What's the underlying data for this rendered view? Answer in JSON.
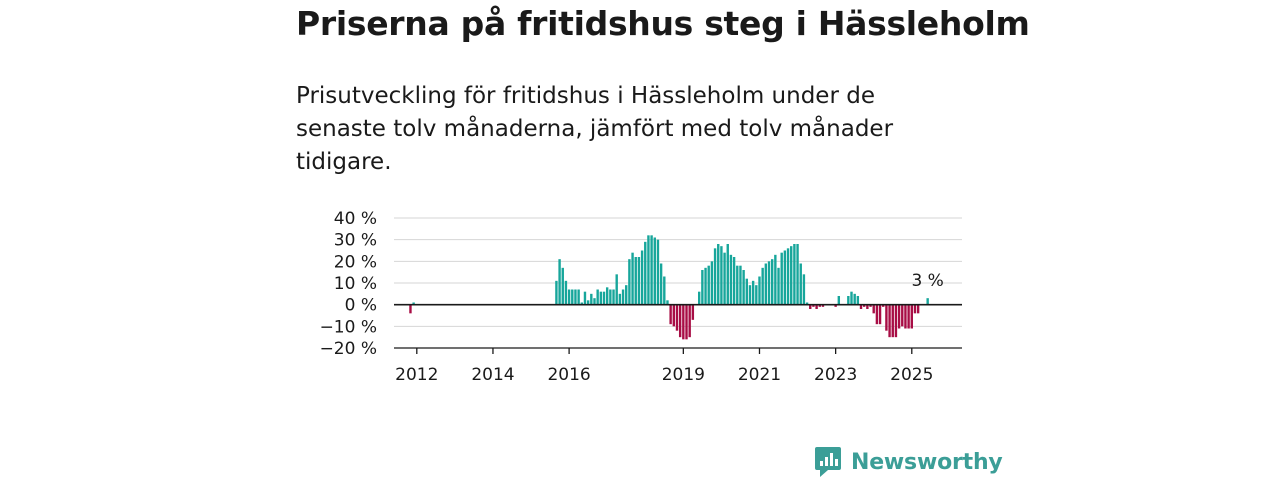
{
  "title": "Priserna på fritidshus steg i Hässleholm",
  "subtitle": "Prisutveckling för fritidshus i Hässleholm under de senaste tolv månaderna, jämfört med tolv månader tidigare.",
  "brand": {
    "name": "Newsworthy",
    "icon": "newsworthy-logo-icon",
    "color": "#3b9e97"
  },
  "colors": {
    "positive": "#17a69b",
    "negative": "#a80d45",
    "grid": "#d6d6d6",
    "axis": "#1a1a1a"
  },
  "chart_data": {
    "type": "bar",
    "x_unit": "month",
    "x_start": "2011-01",
    "x_ticks": [
      "2012",
      "2014",
      "2016",
      "2019",
      "2021",
      "2023",
      "2025"
    ],
    "y_ticks": [
      "40 %",
      "30 %",
      "20 %",
      "10 %",
      "0 %",
      "−10 %",
      "−20 %"
    ],
    "ylim": [
      -20,
      40
    ],
    "grid": true,
    "last_value_label": "3 %",
    "points": [
      {
        "x": "2011-10",
        "y": -4
      },
      {
        "x": "2011-11",
        "y": 1
      },
      {
        "x": "2015-08",
        "y": 11
      },
      {
        "x": "2015-09",
        "y": 21
      },
      {
        "x": "2015-10",
        "y": 17
      },
      {
        "x": "2015-11",
        "y": 11
      },
      {
        "x": "2015-12",
        "y": 7
      },
      {
        "x": "2016-01",
        "y": 7
      },
      {
        "x": "2016-02",
        "y": 7
      },
      {
        "x": "2016-03",
        "y": 7
      },
      {
        "x": "2016-04",
        "y": 1
      },
      {
        "x": "2016-05",
        "y": 6
      },
      {
        "x": "2016-06",
        "y": 2
      },
      {
        "x": "2016-07",
        "y": 5
      },
      {
        "x": "2016-08",
        "y": 3
      },
      {
        "x": "2016-09",
        "y": 7
      },
      {
        "x": "2016-10",
        "y": 6
      },
      {
        "x": "2016-11",
        "y": 6
      },
      {
        "x": "2016-12",
        "y": 8
      },
      {
        "x": "2017-01",
        "y": 7
      },
      {
        "x": "2017-02",
        "y": 7
      },
      {
        "x": "2017-03",
        "y": 14
      },
      {
        "x": "2017-04",
        "y": 5
      },
      {
        "x": "2017-05",
        "y": 7
      },
      {
        "x": "2017-06",
        "y": 9
      },
      {
        "x": "2017-07",
        "y": 21
      },
      {
        "x": "2017-08",
        "y": 24
      },
      {
        "x": "2017-09",
        "y": 22
      },
      {
        "x": "2017-10",
        "y": 22
      },
      {
        "x": "2017-11",
        "y": 25
      },
      {
        "x": "2017-12",
        "y": 29
      },
      {
        "x": "2018-01",
        "y": 32
      },
      {
        "x": "2018-02",
        "y": 32
      },
      {
        "x": "2018-03",
        "y": 31
      },
      {
        "x": "2018-04",
        "y": 30
      },
      {
        "x": "2018-05",
        "y": 19
      },
      {
        "x": "2018-06",
        "y": 13
      },
      {
        "x": "2018-07",
        "y": 2
      },
      {
        "x": "2018-08",
        "y": -9
      },
      {
        "x": "2018-09",
        "y": -10
      },
      {
        "x": "2018-10",
        "y": -12
      },
      {
        "x": "2018-11",
        "y": -15
      },
      {
        "x": "2018-12",
        "y": -16
      },
      {
        "x": "2019-01",
        "y": -16
      },
      {
        "x": "2019-02",
        "y": -15
      },
      {
        "x": "2019-03",
        "y": -7
      },
      {
        "x": "2019-04",
        "y": 0
      },
      {
        "x": "2019-05",
        "y": 6
      },
      {
        "x": "2019-06",
        "y": 16
      },
      {
        "x": "2019-07",
        "y": 17
      },
      {
        "x": "2019-08",
        "y": 18
      },
      {
        "x": "2019-09",
        "y": 20
      },
      {
        "x": "2019-10",
        "y": 26
      },
      {
        "x": "2019-11",
        "y": 28
      },
      {
        "x": "2019-12",
        "y": 27
      },
      {
        "x": "2020-01",
        "y": 24
      },
      {
        "x": "2020-02",
        "y": 28
      },
      {
        "x": "2020-03",
        "y": 23
      },
      {
        "x": "2020-04",
        "y": 22
      },
      {
        "x": "2020-05",
        "y": 18
      },
      {
        "x": "2020-06",
        "y": 18
      },
      {
        "x": "2020-07",
        "y": 16
      },
      {
        "x": "2020-08",
        "y": 12
      },
      {
        "x": "2020-09",
        "y": 9
      },
      {
        "x": "2020-10",
        "y": 11
      },
      {
        "x": "2020-11",
        "y": 9
      },
      {
        "x": "2020-12",
        "y": 13
      },
      {
        "x": "2021-01",
        "y": 17
      },
      {
        "x": "2021-02",
        "y": 19
      },
      {
        "x": "2021-03",
        "y": 20
      },
      {
        "x": "2021-04",
        "y": 21
      },
      {
        "x": "2021-05",
        "y": 23
      },
      {
        "x": "2021-06",
        "y": 17
      },
      {
        "x": "2021-07",
        "y": 24
      },
      {
        "x": "2021-08",
        "y": 25
      },
      {
        "x": "2021-09",
        "y": 26
      },
      {
        "x": "2021-10",
        "y": 27
      },
      {
        "x": "2021-11",
        "y": 28
      },
      {
        "x": "2021-12",
        "y": 28
      },
      {
        "x": "2022-01",
        "y": 19
      },
      {
        "x": "2022-02",
        "y": 14
      },
      {
        "x": "2022-03",
        "y": 1
      },
      {
        "x": "2022-04",
        "y": -2
      },
      {
        "x": "2022-05",
        "y": -1
      },
      {
        "x": "2022-06",
        "y": -2
      },
      {
        "x": "2022-07",
        "y": -1
      },
      {
        "x": "2022-08",
        "y": -1
      },
      {
        "x": "2022-09",
        "y": 0
      },
      {
        "x": "2022-10",
        "y": 0
      },
      {
        "x": "2022-11",
        "y": 0
      },
      {
        "x": "2022-12",
        "y": -1
      },
      {
        "x": "2023-01",
        "y": 4
      },
      {
        "x": "2023-02",
        "y": 0
      },
      {
        "x": "2023-03",
        "y": 0
      },
      {
        "x": "2023-04",
        "y": 4
      },
      {
        "x": "2023-05",
        "y": 6
      },
      {
        "x": "2023-06",
        "y": 5
      },
      {
        "x": "2023-07",
        "y": 4
      },
      {
        "x": "2023-08",
        "y": -2
      },
      {
        "x": "2023-09",
        "y": -1
      },
      {
        "x": "2023-10",
        "y": -2
      },
      {
        "x": "2023-11",
        "y": -1
      },
      {
        "x": "2023-12",
        "y": -4
      },
      {
        "x": "2024-01",
        "y": -9
      },
      {
        "x": "2024-02",
        "y": -9
      },
      {
        "x": "2024-03",
        "y": -1
      },
      {
        "x": "2024-04",
        "y": -12
      },
      {
        "x": "2024-05",
        "y": -15
      },
      {
        "x": "2024-06",
        "y": -15
      },
      {
        "x": "2024-07",
        "y": -15
      },
      {
        "x": "2024-08",
        "y": -11
      },
      {
        "x": "2024-09",
        "y": -10
      },
      {
        "x": "2024-10",
        "y": -11
      },
      {
        "x": "2024-11",
        "y": -11
      },
      {
        "x": "2024-12",
        "y": -11
      },
      {
        "x": "2025-01",
        "y": -4
      },
      {
        "x": "2025-02",
        "y": -4
      },
      {
        "x": "2025-03",
        "y": 0
      },
      {
        "x": "2025-04",
        "y": 0
      },
      {
        "x": "2025-05",
        "y": 3
      }
    ]
  }
}
